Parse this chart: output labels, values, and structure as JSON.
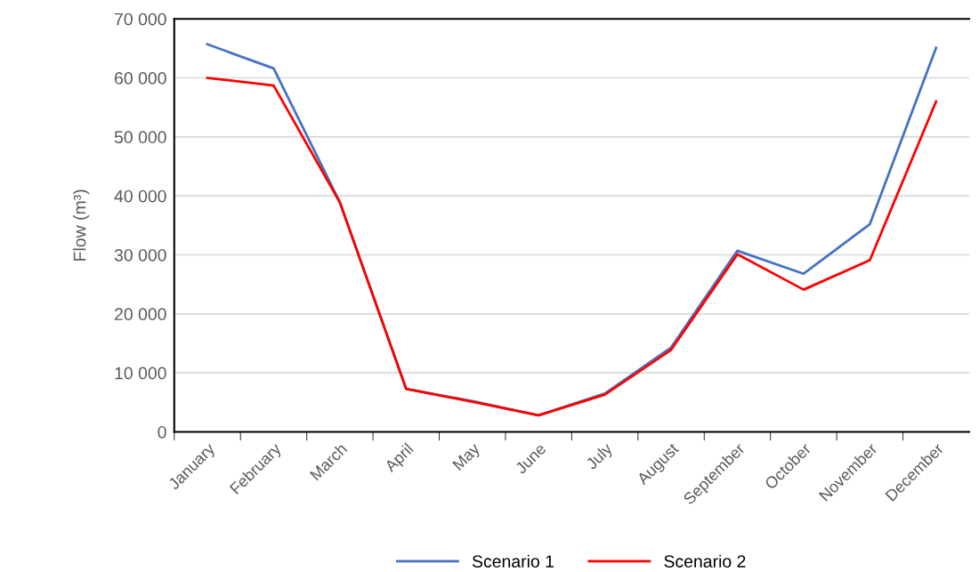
{
  "chart_data": {
    "type": "line",
    "ylabel": "Flow (m³)",
    "categories": [
      "January",
      "February",
      "March",
      "April",
      "May",
      "June",
      "July",
      "August",
      "September",
      "October",
      "November",
      "December"
    ],
    "series": [
      {
        "name": "Scenario 1",
        "color": "#4472c4",
        "values": [
          65700,
          61600,
          38900,
          7300,
          5200,
          2800,
          6500,
          14300,
          30700,
          26800,
          35200,
          65100
        ]
      },
      {
        "name": "Scenario 2",
        "color": "#ff0000",
        "values": [
          60000,
          58700,
          38900,
          7300,
          5100,
          2800,
          6300,
          13900,
          30100,
          24100,
          29100,
          56000
        ]
      }
    ],
    "ylim": [
      0,
      70000
    ],
    "yticks": [
      {
        "value": 0,
        "label": "0"
      },
      {
        "value": 10000,
        "label": "10 000"
      },
      {
        "value": 20000,
        "label": "20 000"
      },
      {
        "value": 30000,
        "label": "30 000"
      },
      {
        "value": 40000,
        "label": "40 000"
      },
      {
        "value": 50000,
        "label": "50 000"
      },
      {
        "value": 60000,
        "label": "60 000"
      },
      {
        "value": 70000,
        "label": "70 000"
      }
    ],
    "grid": "y",
    "legend": "bottom",
    "line_style": "solid"
  }
}
